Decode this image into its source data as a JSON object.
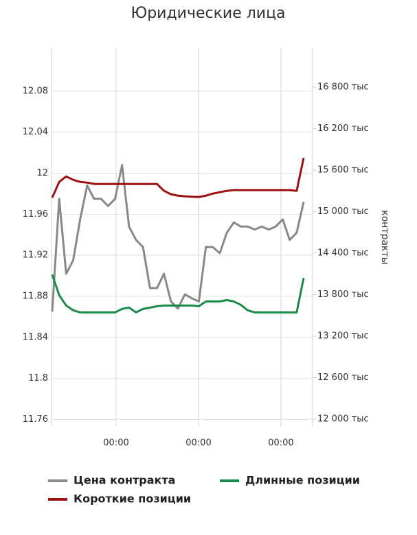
{
  "chart_data": {
    "type": "line",
    "title": "Юридические лица",
    "y2_label": "контракты",
    "xlim": [
      0,
      36
    ],
    "xticks": [
      {
        "value": 9.15,
        "label": "00:00"
      },
      {
        "value": 20.95,
        "label": "00:00"
      },
      {
        "value": 32.75,
        "label": "00:00"
      }
    ],
    "ylim": [
      11.753,
      12.122
    ],
    "yticks": [
      11.76,
      11.8,
      11.84,
      11.88,
      11.92,
      11.96,
      12,
      12.04,
      12.08
    ],
    "y2lim": [
      11891,
      17366
    ],
    "y2ticks": [
      {
        "value": 12000,
        "label": "12 000 тыс"
      },
      {
        "value": 12600,
        "label": "12 600 тыс"
      },
      {
        "value": 13200,
        "label": "13 200 тыс"
      },
      {
        "value": 13800,
        "label": "13 800 тыс"
      },
      {
        "value": 14400,
        "label": "14 400 тыс"
      },
      {
        "value": 15000,
        "label": "15 000 тыс"
      },
      {
        "value": 15600,
        "label": "15 600 тыс"
      },
      {
        "value": 16200,
        "label": "16 200 тыс"
      },
      {
        "value": 16800,
        "label": "16 800 тыс"
      }
    ],
    "grid": true,
    "series": [
      {
        "name": "Цена контракта",
        "color": "#888888",
        "axis": "y",
        "values": [
          11.865,
          11.975,
          11.902,
          11.915,
          11.955,
          11.988,
          11.975,
          11.975,
          11.968,
          11.975,
          12.008,
          11.948,
          11.935,
          11.928,
          11.888,
          11.888,
          11.902,
          11.875,
          11.868,
          11.882,
          11.878,
          11.875,
          11.928,
          11.928,
          11.922,
          11.942,
          11.952,
          11.948,
          11.948,
          11.945,
          11.948,
          11.945,
          11.948,
          11.955,
          11.935,
          11.942,
          11.972
        ]
      },
      {
        "name": "Короткие позиции",
        "color": "#a00f0f",
        "axis": "y2",
        "values": [
          15201,
          15430,
          15509,
          15460,
          15430,
          15420,
          15400,
          15400,
          15400,
          15400,
          15400,
          15400,
          15400,
          15400,
          15400,
          15400,
          15301,
          15251,
          15231,
          15221,
          15215,
          15211,
          15231,
          15261,
          15281,
          15301,
          15310,
          15310,
          15310,
          15310,
          15310,
          15310,
          15310,
          15310,
          15310,
          15300,
          15777
        ]
      },
      {
        "name": "Длинные позиции",
        "color": "#1a8a4a",
        "axis": "y2",
        "values": [
          14089,
          13791,
          13642,
          13573,
          13543,
          13543,
          13543,
          13543,
          13543,
          13543,
          13593,
          13612,
          13543,
          13593,
          13612,
          13632,
          13642,
          13642,
          13642,
          13642,
          13642,
          13632,
          13701,
          13701,
          13701,
          13721,
          13701,
          13652,
          13573,
          13543,
          13543,
          13543,
          13543,
          13543,
          13543,
          13543,
          14040
        ]
      }
    ]
  }
}
